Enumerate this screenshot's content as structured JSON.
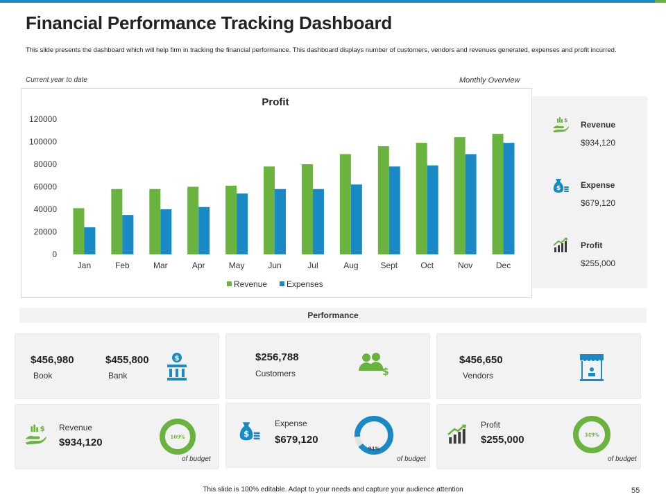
{
  "header": {
    "title": "Financial Performance Tracking Dashboard",
    "subtitle": "This slide presents the dashboard which will help firm in tracking the financial performance. This dashboard displays number of customers, vendors and revenues generated, expenses and profit incurred.",
    "left_label": "Current year to date",
    "right_label": "Monthly Overview"
  },
  "colors": {
    "revenue": "#6ab33f",
    "expenses": "#1a8ac6",
    "accent_blue": "#1b8ac4",
    "panel": "#f2f2f2"
  },
  "chart_data": {
    "type": "bar",
    "title": "Profit",
    "categories": [
      "Jan",
      "Feb",
      "Mar",
      "Apr",
      "May",
      "Jun",
      "Jul",
      "Aug",
      "Sept",
      "Oct",
      "Nov",
      "Dec"
    ],
    "series": [
      {
        "name": "Revenue",
        "values": [
          41000,
          58000,
          58000,
          60000,
          61000,
          78000,
          80000,
          89000,
          96000,
          99000,
          104000,
          107000
        ]
      },
      {
        "name": "Expenses",
        "values": [
          24000,
          35000,
          40000,
          42000,
          54000,
          58000,
          58000,
          62000,
          78000,
          79000,
          89000,
          99000
        ]
      }
    ],
    "ylim": [
      0,
      120000
    ],
    "yticks": [
      "0",
      "20000",
      "40000",
      "60000",
      "80000",
      "100000",
      "120000"
    ],
    "yticks_values": [
      0,
      20000,
      40000,
      60000,
      80000,
      100000,
      120000
    ],
    "xlabel": "",
    "ylabel": "",
    "legend": "bottom"
  },
  "side": {
    "revenue": {
      "name": "Revenue",
      "value": "$934,120",
      "icon": "hand-money-icon"
    },
    "expense": {
      "name": "Expense",
      "value": "$679,120",
      "icon": "money-bag-icon"
    },
    "profit": {
      "name": "Profit",
      "value": "$255,000",
      "icon": "growth-chart-icon"
    }
  },
  "performance": {
    "title": "Performance",
    "book": {
      "value": "$456,980",
      "label": "Book"
    },
    "bank": {
      "value": "$455,800",
      "label": "Bank"
    },
    "customers": {
      "value": "$256,788",
      "label": "Customers"
    },
    "vendors": {
      "value": "$456,650",
      "label": "Vendors"
    },
    "revenue": {
      "label": "Revenue",
      "value": "$934,120",
      "percent_label": "109%",
      "percent": 109
    },
    "expense": {
      "label": "Expense",
      "value": "$679,120",
      "percent_label": "91%",
      "percent": 91
    },
    "profit": {
      "label": "Profit",
      "value": "$255,000",
      "percent_label": "349%",
      "percent": 349
    },
    "of_budget": "of budget"
  },
  "footer": {
    "text": "This slide is 100% editable.  Adapt to your needs and capture your audience attention",
    "page": "55"
  }
}
